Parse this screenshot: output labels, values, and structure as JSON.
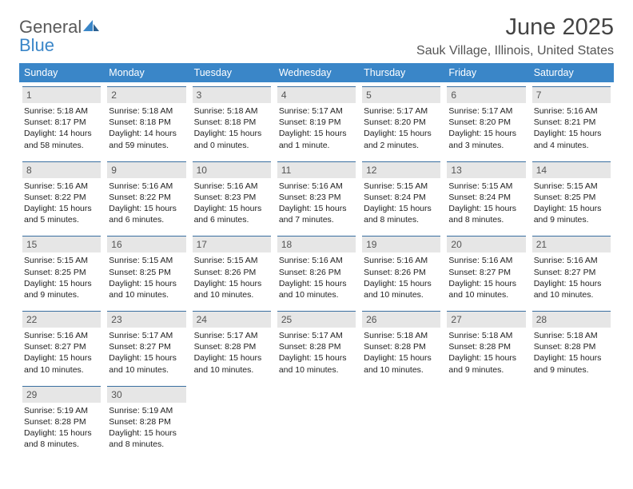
{
  "brand": {
    "word1": "General",
    "word2": "Blue"
  },
  "title": "June 2025",
  "location": "Sauk Village, Illinois, United States",
  "colors": {
    "header_bg": "#3a86c8",
    "daynum_bg": "#e6e6e6",
    "daynum_border": "#3a6fa0",
    "text": "#222222",
    "title_color": "#444444"
  },
  "days_of_week": [
    "Sunday",
    "Monday",
    "Tuesday",
    "Wednesday",
    "Thursday",
    "Friday",
    "Saturday"
  ],
  "weeks": [
    [
      {
        "n": "1",
        "sr": "5:18 AM",
        "ss": "8:17 PM",
        "dl": "14 hours and 58 minutes."
      },
      {
        "n": "2",
        "sr": "5:18 AM",
        "ss": "8:18 PM",
        "dl": "14 hours and 59 minutes."
      },
      {
        "n": "3",
        "sr": "5:18 AM",
        "ss": "8:18 PM",
        "dl": "15 hours and 0 minutes."
      },
      {
        "n": "4",
        "sr": "5:17 AM",
        "ss": "8:19 PM",
        "dl": "15 hours and 1 minute."
      },
      {
        "n": "5",
        "sr": "5:17 AM",
        "ss": "8:20 PM",
        "dl": "15 hours and 2 minutes."
      },
      {
        "n": "6",
        "sr": "5:17 AM",
        "ss": "8:20 PM",
        "dl": "15 hours and 3 minutes."
      },
      {
        "n": "7",
        "sr": "5:16 AM",
        "ss": "8:21 PM",
        "dl": "15 hours and 4 minutes."
      }
    ],
    [
      {
        "n": "8",
        "sr": "5:16 AM",
        "ss": "8:22 PM",
        "dl": "15 hours and 5 minutes."
      },
      {
        "n": "9",
        "sr": "5:16 AM",
        "ss": "8:22 PM",
        "dl": "15 hours and 6 minutes."
      },
      {
        "n": "10",
        "sr": "5:16 AM",
        "ss": "8:23 PM",
        "dl": "15 hours and 6 minutes."
      },
      {
        "n": "11",
        "sr": "5:16 AM",
        "ss": "8:23 PM",
        "dl": "15 hours and 7 minutes."
      },
      {
        "n": "12",
        "sr": "5:15 AM",
        "ss": "8:24 PM",
        "dl": "15 hours and 8 minutes."
      },
      {
        "n": "13",
        "sr": "5:15 AM",
        "ss": "8:24 PM",
        "dl": "15 hours and 8 minutes."
      },
      {
        "n": "14",
        "sr": "5:15 AM",
        "ss": "8:25 PM",
        "dl": "15 hours and 9 minutes."
      }
    ],
    [
      {
        "n": "15",
        "sr": "5:15 AM",
        "ss": "8:25 PM",
        "dl": "15 hours and 9 minutes."
      },
      {
        "n": "16",
        "sr": "5:15 AM",
        "ss": "8:25 PM",
        "dl": "15 hours and 10 minutes."
      },
      {
        "n": "17",
        "sr": "5:15 AM",
        "ss": "8:26 PM",
        "dl": "15 hours and 10 minutes."
      },
      {
        "n": "18",
        "sr": "5:16 AM",
        "ss": "8:26 PM",
        "dl": "15 hours and 10 minutes."
      },
      {
        "n": "19",
        "sr": "5:16 AM",
        "ss": "8:26 PM",
        "dl": "15 hours and 10 minutes."
      },
      {
        "n": "20",
        "sr": "5:16 AM",
        "ss": "8:27 PM",
        "dl": "15 hours and 10 minutes."
      },
      {
        "n": "21",
        "sr": "5:16 AM",
        "ss": "8:27 PM",
        "dl": "15 hours and 10 minutes."
      }
    ],
    [
      {
        "n": "22",
        "sr": "5:16 AM",
        "ss": "8:27 PM",
        "dl": "15 hours and 10 minutes."
      },
      {
        "n": "23",
        "sr": "5:17 AM",
        "ss": "8:27 PM",
        "dl": "15 hours and 10 minutes."
      },
      {
        "n": "24",
        "sr": "5:17 AM",
        "ss": "8:28 PM",
        "dl": "15 hours and 10 minutes."
      },
      {
        "n": "25",
        "sr": "5:17 AM",
        "ss": "8:28 PM",
        "dl": "15 hours and 10 minutes."
      },
      {
        "n": "26",
        "sr": "5:18 AM",
        "ss": "8:28 PM",
        "dl": "15 hours and 10 minutes."
      },
      {
        "n": "27",
        "sr": "5:18 AM",
        "ss": "8:28 PM",
        "dl": "15 hours and 9 minutes."
      },
      {
        "n": "28",
        "sr": "5:18 AM",
        "ss": "8:28 PM",
        "dl": "15 hours and 9 minutes."
      }
    ],
    [
      {
        "n": "29",
        "sr": "5:19 AM",
        "ss": "8:28 PM",
        "dl": "15 hours and 8 minutes."
      },
      {
        "n": "30",
        "sr": "5:19 AM",
        "ss": "8:28 PM",
        "dl": "15 hours and 8 minutes."
      },
      null,
      null,
      null,
      null,
      null
    ]
  ],
  "labels": {
    "sunrise": "Sunrise: ",
    "sunset": "Sunset: ",
    "daylight": "Daylight: "
  }
}
